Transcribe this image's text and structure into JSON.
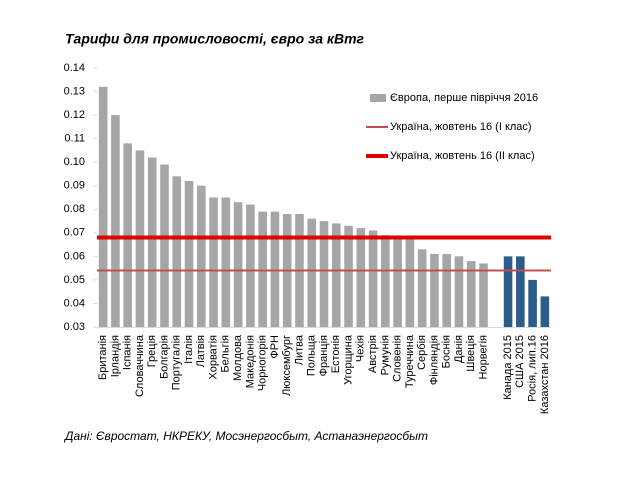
{
  "chart_data": {
    "type": "bar",
    "title": "Тарифи для промисловості, євро за кВтг",
    "source": "Дані: Євростат, НКРЕКУ, Мосэнергосбыт, Астанаэнергосбыт",
    "categories": [
      "Британія",
      "Ірландія",
      "Іспанія",
      "Словаччина",
      "Греція",
      "Болгарія",
      "Португалія",
      "Італія",
      "Латвія",
      "Хорватія",
      "Бельгія",
      "Молдова",
      "Македонія",
      "Чорногорія",
      "ФРН",
      "Люксембург",
      "Литва",
      "Польща",
      "Франція",
      "Естонія",
      "Угорщина",
      "Чехія",
      "Австрія",
      "Румунія",
      "Словенія",
      "Туреччина",
      "Сербія",
      "Фінляндія",
      "Боснія",
      "Данія",
      "Швеція",
      "Норвегія",
      null,
      "Канада 2015",
      "США 2015",
      "Росія, лип.16",
      "Казахстан 2016"
    ],
    "series": [
      {
        "name": "Європа, перше півріччя 2016",
        "color": "#a6a6a6",
        "values": [
          0.132,
          0.12,
          0.108,
          0.105,
          0.102,
          0.099,
          0.094,
          0.092,
          0.09,
          0.085,
          0.085,
          0.083,
          0.082,
          0.079,
          0.079,
          0.078,
          0.078,
          0.076,
          0.075,
          0.074,
          0.073,
          0.072,
          0.071,
          0.069,
          0.068,
          0.068,
          0.063,
          0.061,
          0.061,
          0.06,
          0.058,
          0.057,
          null,
          null,
          null,
          null,
          null
        ]
      },
      {
        "color": "#2e5c8a",
        "values": [
          null,
          null,
          null,
          null,
          null,
          null,
          null,
          null,
          null,
          null,
          null,
          null,
          null,
          null,
          null,
          null,
          null,
          null,
          null,
          null,
          null,
          null,
          null,
          null,
          null,
          null,
          null,
          null,
          null,
          null,
          null,
          null,
          null,
          0.06,
          0.06,
          0.05,
          0.043
        ]
      }
    ],
    "reference_lines": [
      {
        "name": "Україна, жовтень 16 (І клас)",
        "color": "#c0504d",
        "value": 0.054,
        "width": 2
      },
      {
        "name": "Україна, жовтень 16 (ІІ клас)",
        "color": "#e00000",
        "value": 0.068,
        "width": 4
      }
    ],
    "ylim": [
      0.03,
      0.14
    ],
    "yticks": [
      0.03,
      0.04,
      0.05,
      0.06,
      0.07,
      0.08,
      0.09,
      {
        "value": 0.1,
        "label": "0.10"
      },
      0.11,
      0.12,
      0.13,
      0.14
    ],
    "grid": false,
    "legend": "upper right"
  }
}
